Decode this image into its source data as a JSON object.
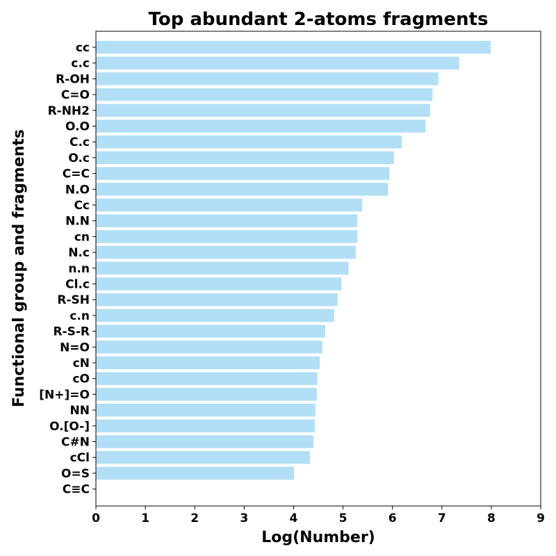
{
  "chart_data": {
    "type": "bar",
    "orientation": "horizontal",
    "title": "Top abundant 2-atoms fragments",
    "xlabel": "Log(Number)",
    "ylabel": "Functional group and fragments",
    "xlim": [
      0,
      9
    ],
    "xticks": [
      "0",
      "1",
      "2",
      "3",
      "4",
      "5",
      "6",
      "7",
      "8",
      "9"
    ],
    "grid": false,
    "bar_color": "#b2dff5",
    "categories": [
      "cc",
      "c.c",
      "R-OH",
      "C=O",
      "R-NH2",
      "O.O",
      "C.c",
      "O.c",
      "C=C",
      "N.O",
      "Cc",
      "N.N",
      "cn",
      "N.c",
      "n.n",
      "Cl.c",
      "R-SH",
      "c.n",
      "R-S-R",
      "N=O",
      "cN",
      "cO",
      "[N+]=O",
      "NN",
      "O.[O-]",
      "C#N",
      "cCl",
      "O=S",
      "C≡C"
    ],
    "values": [
      7.99,
      7.35,
      6.93,
      6.81,
      6.76,
      6.67,
      6.19,
      6.03,
      5.94,
      5.91,
      5.39,
      5.29,
      5.29,
      5.26,
      5.11,
      4.97,
      4.89,
      4.82,
      4.64,
      4.58,
      4.53,
      4.48,
      4.47,
      4.44,
      4.43,
      4.4,
      4.33,
      4.01,
      0
    ]
  }
}
